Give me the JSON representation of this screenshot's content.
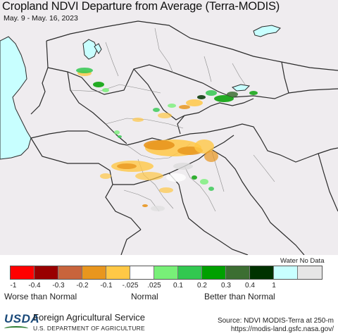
{
  "map": {
    "title": "Cropland NDVI Departure from Average (Terra-MODIS)",
    "date_range": "May. 9 - May. 16, 2023"
  },
  "legend": {
    "water_no_data_label": "Water No Data",
    "classes": [
      {
        "color": "#ff0000"
      },
      {
        "color": "#990000"
      },
      {
        "color": "#c8643c"
      },
      {
        "color": "#e8961e"
      },
      {
        "color": "#ffc846"
      },
      {
        "color": "#ffffff"
      },
      {
        "color": "#78f078"
      },
      {
        "color": "#32c850"
      },
      {
        "color": "#00a000"
      },
      {
        "color": "#3c6e32"
      },
      {
        "color": "#003200"
      },
      {
        "color": "#c8ffff"
      },
      {
        "color": "#e6e6e6"
      }
    ],
    "ticks": [
      "-1",
      "-0.4",
      "-0.3",
      "-0.2",
      "-0.1",
      "-.025",
      ".025",
      "0.1",
      "0.2",
      "0.3",
      "0.4",
      "1"
    ],
    "categories": {
      "worse": "Worse than Normal",
      "normal": "Normal",
      "better": "Better than Normal"
    }
  },
  "footer": {
    "logo_text": "USDA",
    "agency": "Foreign Agricultural Service",
    "department": "U.S. DEPARTMENT OF AGRICULTURE",
    "source": "Source: NDVI MODIS-Terra at 250-m",
    "url": "https://modis-land.gsfc.nasa.gov/"
  }
}
